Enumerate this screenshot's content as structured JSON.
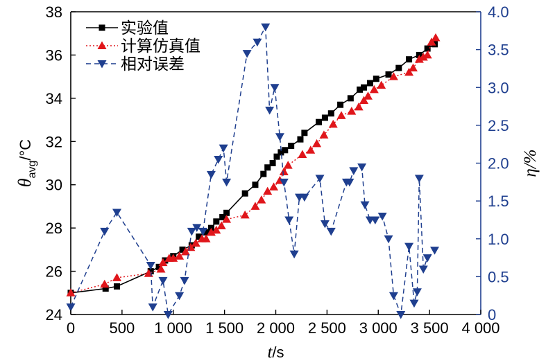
{
  "chart_data": {
    "type": "line",
    "x": {
      "label": "t",
      "unit": "/s",
      "lim": [
        0,
        4000
      ],
      "ticks": [
        0,
        500,
        1000,
        1500,
        2000,
        2500,
        3000,
        3500,
        4000
      ],
      "tick_labels": [
        "0",
        "500",
        "1 000",
        "1 500",
        "2 000",
        "2 500",
        "3 000",
        "3 500",
        "4 000"
      ]
    },
    "y_left": {
      "label_main": "θ",
      "label_sub": "avg",
      "label_unit": "/°C",
      "lim": [
        24,
        38
      ],
      "ticks": [
        24,
        26,
        28,
        30,
        32,
        34,
        36,
        38
      ],
      "tick_labels": [
        "24",
        "26",
        "28",
        "30",
        "32",
        "34",
        "36",
        "38"
      ]
    },
    "y_right": {
      "label": "η/%",
      "lim": [
        0,
        4.0
      ],
      "ticks": [
        0,
        0.5,
        1.0,
        1.5,
        2.0,
        2.5,
        3.0,
        3.5,
        4.0
      ],
      "tick_labels": [
        "0",
        "0.5",
        "1.0",
        "1.5",
        "2.0",
        "2.5",
        "3.0",
        "3.5",
        "4.0"
      ],
      "color": "#1f3f8f"
    },
    "legend_position": "top-left",
    "series": [
      {
        "name": "实验值",
        "axis": "left",
        "color": "#000000",
        "marker": "square",
        "line": "solid",
        "x": [
          0,
          340,
          450,
          780,
          860,
          920,
          1000,
          1090,
          1180,
          1250,
          1320,
          1370,
          1420,
          1480,
          1520,
          1700,
          1800,
          1880,
          1920,
          1970,
          2010,
          2050,
          2090,
          2150,
          2240,
          2280,
          2420,
          2480,
          2540,
          2630,
          2730,
          2820,
          2860,
          2920,
          2980,
          3100,
          3200,
          3300,
          3400,
          3480,
          3550
        ],
        "y": [
          25.0,
          25.2,
          25.3,
          26.0,
          26.2,
          26.5,
          26.7,
          27.0,
          27.2,
          27.6,
          27.8,
          28.0,
          28.3,
          28.5,
          28.7,
          29.6,
          30.0,
          30.5,
          30.8,
          31.0,
          31.3,
          31.5,
          31.6,
          31.8,
          32.1,
          32.4,
          32.9,
          33.1,
          33.3,
          33.7,
          34.0,
          34.4,
          34.5,
          34.7,
          34.9,
          35.1,
          35.4,
          35.8,
          36.0,
          36.3,
          36.5
        ]
      },
      {
        "name": "计算仿真值",
        "axis": "left",
        "color": "#e0161b",
        "marker": "triangle-up",
        "line": "dotted",
        "x": [
          0,
          330,
          450,
          760,
          880,
          900,
          960,
          1000,
          1060,
          1120,
          1170,
          1220,
          1280,
          1320,
          1370,
          1420,
          1470,
          1520,
          1700,
          1800,
          1860,
          1920,
          1980,
          2040,
          2080,
          2120,
          2260,
          2340,
          2400,
          2470,
          2560,
          2640,
          2740,
          2810,
          2860,
          2900,
          2960,
          3030,
          3150,
          3300,
          3340,
          3400,
          3440,
          3480,
          3520,
          3560
        ],
        "y": [
          25.0,
          25.4,
          25.7,
          25.9,
          26.1,
          26.4,
          26.6,
          26.6,
          26.7,
          26.9,
          27.1,
          27.3,
          27.5,
          27.5,
          27.8,
          27.9,
          28.1,
          28.4,
          28.6,
          29.0,
          29.3,
          29.7,
          29.9,
          30.2,
          30.6,
          30.9,
          31.4,
          31.6,
          31.9,
          32.3,
          32.8,
          33.2,
          33.4,
          33.6,
          33.9,
          34.1,
          34.4,
          34.6,
          35.0,
          35.2,
          35.4,
          35.8,
          35.9,
          36.0,
          36.6,
          36.8
        ]
      },
      {
        "name": "相对误差",
        "axis": "right",
        "color": "#1f3f8f",
        "marker": "triangle-down",
        "line": "dashed",
        "x": [
          0,
          330,
          450,
          780,
          800,
          900,
          950,
          1060,
          1110,
          1180,
          1230,
          1290,
          1370,
          1440,
          1490,
          1520,
          1720,
          1820,
          1900,
          1940,
          1990,
          2040,
          2080,
          2130,
          2180,
          2230,
          2280,
          2430,
          2480,
          2540,
          2690,
          2720,
          2760,
          2840,
          2870,
          2920,
          2970,
          3040,
          3100,
          3150,
          3220,
          3300,
          3350,
          3380,
          3400,
          3440,
          3480,
          3550
        ],
        "y": [
          0.1,
          1.1,
          1.35,
          0.65,
          0.1,
          0.45,
          0.0,
          0.25,
          0.45,
          1.1,
          1.15,
          1.1,
          1.85,
          2.05,
          2.2,
          1.75,
          3.45,
          3.6,
          3.8,
          2.7,
          3.0,
          2.35,
          1.75,
          1.25,
          0.8,
          1.55,
          1.55,
          1.8,
          1.2,
          1.1,
          1.75,
          1.75,
          1.9,
          1.95,
          1.45,
          1.25,
          1.25,
          1.3,
          1.0,
          0.25,
          0.0,
          0.9,
          0.15,
          0.3,
          1.8,
          0.6,
          0.75,
          0.85
        ]
      }
    ]
  }
}
